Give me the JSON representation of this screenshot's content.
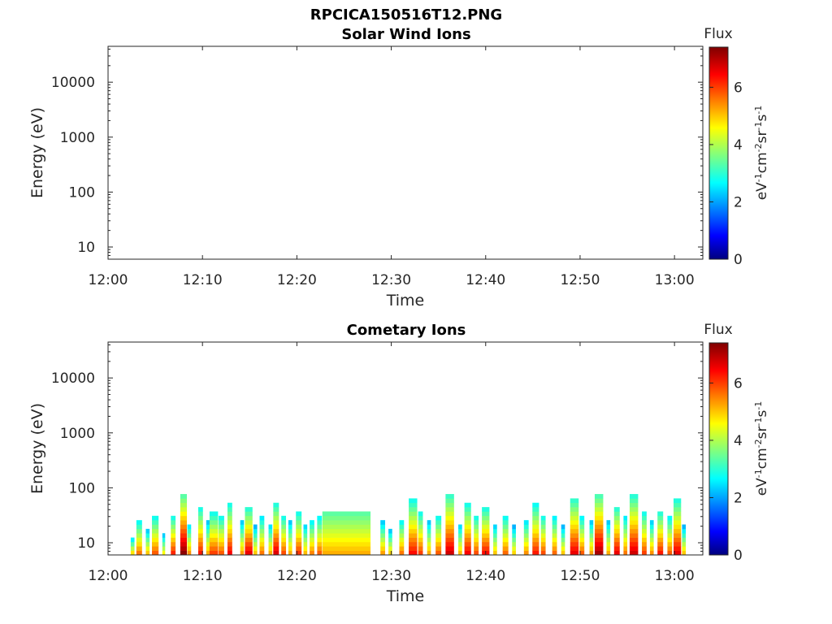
{
  "figure_title": "RPCICA150516T12.PNG",
  "chart_data": [
    {
      "type": "heatmap",
      "title": "Solar Wind Ions",
      "xlabel": "Time",
      "ylabel": "Energy (eV)",
      "x_tick_labels": [
        "12:00",
        "12:10",
        "12:20",
        "12:30",
        "12:40",
        "12:50",
        "13:00"
      ],
      "x_range_minutes": [
        0,
        63
      ],
      "y_scale": "log",
      "y_tick_labels": [
        "10",
        "100",
        "1000",
        "10000"
      ],
      "y_range": [
        6,
        45000
      ],
      "colorbar": {
        "title": "Flux",
        "label": "eV-1cm-2sr-1s-1",
        "range": [
          0,
          7.4
        ],
        "tick_labels": [
          "0",
          "2",
          "4",
          "6"
        ],
        "colormap": "jet"
      },
      "bursts": []
    },
    {
      "type": "heatmap",
      "title": "Cometary Ions",
      "xlabel": "Time",
      "ylabel": "Energy (eV)",
      "x_tick_labels": [
        "12:00",
        "12:10",
        "12:20",
        "12:30",
        "12:40",
        "12:50",
        "13:00"
      ],
      "x_range_minutes": [
        0,
        63
      ],
      "y_scale": "log",
      "y_tick_labels": [
        "10",
        "100",
        "1000",
        "10000"
      ],
      "y_range": [
        6,
        45000
      ],
      "colorbar": {
        "title": "Flux",
        "label": "eV-1cm-2sr-1s-1",
        "range": [
          0,
          7.4
        ],
        "tick_labels": [
          "0",
          "2",
          "4",
          "6"
        ],
        "colormap": "jet"
      },
      "bursts": [
        {
          "t": 2.6,
          "w": 0.4,
          "top": 12,
          "peak": 4.8
        },
        {
          "t": 3.3,
          "w": 0.6,
          "top": 25,
          "peak": 5.6
        },
        {
          "t": 4.2,
          "w": 0.4,
          "top": 16,
          "peak": 5.0
        },
        {
          "t": 5.0,
          "w": 0.7,
          "top": 30,
          "peak": 5.8
        },
        {
          "t": 5.9,
          "w": 0.3,
          "top": 14,
          "peak": 4.6
        },
        {
          "t": 6.9,
          "w": 0.5,
          "top": 28,
          "peak": 6.2
        },
        {
          "t": 8.0,
          "w": 0.7,
          "top": 70,
          "peak": 7.3
        },
        {
          "t": 8.6,
          "w": 0.4,
          "top": 20,
          "peak": 5.4
        },
        {
          "t": 9.8,
          "w": 0.5,
          "top": 40,
          "peak": 6.3
        },
        {
          "t": 10.6,
          "w": 0.4,
          "top": 22,
          "peak": 5.2
        },
        {
          "t": 11.2,
          "w": 0.9,
          "top": 35,
          "peak": 6.0
        },
        {
          "t": 12.0,
          "w": 0.6,
          "top": 30,
          "peak": 5.8
        },
        {
          "t": 12.9,
          "w": 0.5,
          "top": 45,
          "peak": 6.5
        },
        {
          "t": 14.2,
          "w": 0.4,
          "top": 22,
          "peak": 5.3
        },
        {
          "t": 14.9,
          "w": 0.8,
          "top": 40,
          "peak": 6.6
        },
        {
          "t": 15.6,
          "w": 0.4,
          "top": 18,
          "peak": 5.0
        },
        {
          "t": 16.3,
          "w": 0.5,
          "top": 28,
          "peak": 5.6
        },
        {
          "t": 17.2,
          "w": 0.4,
          "top": 20,
          "peak": 5.2
        },
        {
          "t": 17.8,
          "w": 0.6,
          "top": 45,
          "peak": 6.7
        },
        {
          "t": 18.6,
          "w": 0.5,
          "top": 30,
          "peak": 5.9
        },
        {
          "t": 19.3,
          "w": 0.4,
          "top": 22,
          "peak": 5.2
        },
        {
          "t": 20.2,
          "w": 0.6,
          "top": 34,
          "peak": 6.1
        },
        {
          "t": 20.9,
          "w": 0.4,
          "top": 20,
          "peak": 5.1
        },
        {
          "t": 21.6,
          "w": 0.5,
          "top": 25,
          "peak": 5.5
        },
        {
          "t": 22.4,
          "w": 0.5,
          "top": 28,
          "peak": 5.8
        },
        {
          "t": 23.2,
          "w": 0.8,
          "top": 30,
          "peak": 5.6
        },
        {
          "t": 29.1,
          "w": 0.5,
          "top": 22,
          "peak": 5.3
        },
        {
          "t": 29.9,
          "w": 0.4,
          "top": 16,
          "peak": 4.9
        },
        {
          "t": 31.1,
          "w": 0.5,
          "top": 25,
          "peak": 5.6
        },
        {
          "t": 32.3,
          "w": 0.9,
          "top": 55,
          "peak": 6.4
        },
        {
          "t": 33.1,
          "w": 0.5,
          "top": 35,
          "peak": 6.0
        },
        {
          "t": 34.0,
          "w": 0.4,
          "top": 22,
          "peak": 5.2
        },
        {
          "t": 35.0,
          "w": 0.6,
          "top": 30,
          "peak": 5.8
        },
        {
          "t": 36.2,
          "w": 0.9,
          "top": 70,
          "peak": 6.8
        },
        {
          "t": 37.3,
          "w": 0.4,
          "top": 20,
          "peak": 5.1
        },
        {
          "t": 38.1,
          "w": 0.7,
          "top": 45,
          "peak": 6.5
        },
        {
          "t": 39.0,
          "w": 0.5,
          "top": 30,
          "peak": 5.9
        },
        {
          "t": 40.0,
          "w": 0.8,
          "top": 40,
          "peak": 6.4
        },
        {
          "t": 41.0,
          "w": 0.4,
          "top": 20,
          "peak": 5.0
        },
        {
          "t": 42.1,
          "w": 0.6,
          "top": 30,
          "peak": 5.7
        },
        {
          "t": 43.0,
          "w": 0.4,
          "top": 18,
          "peak": 4.9
        },
        {
          "t": 44.3,
          "w": 0.5,
          "top": 24,
          "peak": 5.4
        },
        {
          "t": 45.3,
          "w": 0.7,
          "top": 45,
          "peak": 6.3
        },
        {
          "t": 46.1,
          "w": 0.5,
          "top": 30,
          "peak": 5.9
        },
        {
          "t": 47.3,
          "w": 0.5,
          "top": 28,
          "peak": 5.7
        },
        {
          "t": 48.2,
          "w": 0.4,
          "top": 18,
          "peak": 5.0
        },
        {
          "t": 49.4,
          "w": 0.9,
          "top": 60,
          "peak": 6.6
        },
        {
          "t": 50.2,
          "w": 0.5,
          "top": 28,
          "peak": 5.8
        },
        {
          "t": 51.2,
          "w": 0.4,
          "top": 22,
          "peak": 5.3
        },
        {
          "t": 52.0,
          "w": 0.9,
          "top": 70,
          "peak": 7.1
        },
        {
          "t": 53.0,
          "w": 0.4,
          "top": 22,
          "peak": 5.2
        },
        {
          "t": 53.9,
          "w": 0.6,
          "top": 40,
          "peak": 6.6
        },
        {
          "t": 54.8,
          "w": 0.4,
          "top": 28,
          "peak": 5.6
        },
        {
          "t": 55.7,
          "w": 0.9,
          "top": 65,
          "peak": 6.8
        },
        {
          "t": 56.8,
          "w": 0.5,
          "top": 35,
          "peak": 6.0
        },
        {
          "t": 57.6,
          "w": 0.4,
          "top": 22,
          "peak": 5.4
        },
        {
          "t": 58.5,
          "w": 0.6,
          "top": 35,
          "peak": 6.3
        },
        {
          "t": 59.5,
          "w": 0.5,
          "top": 28,
          "peak": 5.8
        },
        {
          "t": 60.3,
          "w": 0.8,
          "top": 55,
          "peak": 6.6
        },
        {
          "t": 61.0,
          "w": 0.4,
          "top": 18,
          "peak": 5.0
        }
      ],
      "plateau": {
        "start": 22.7,
        "end": 27.8,
        "top": 33,
        "peak": 5.2
      }
    }
  ]
}
